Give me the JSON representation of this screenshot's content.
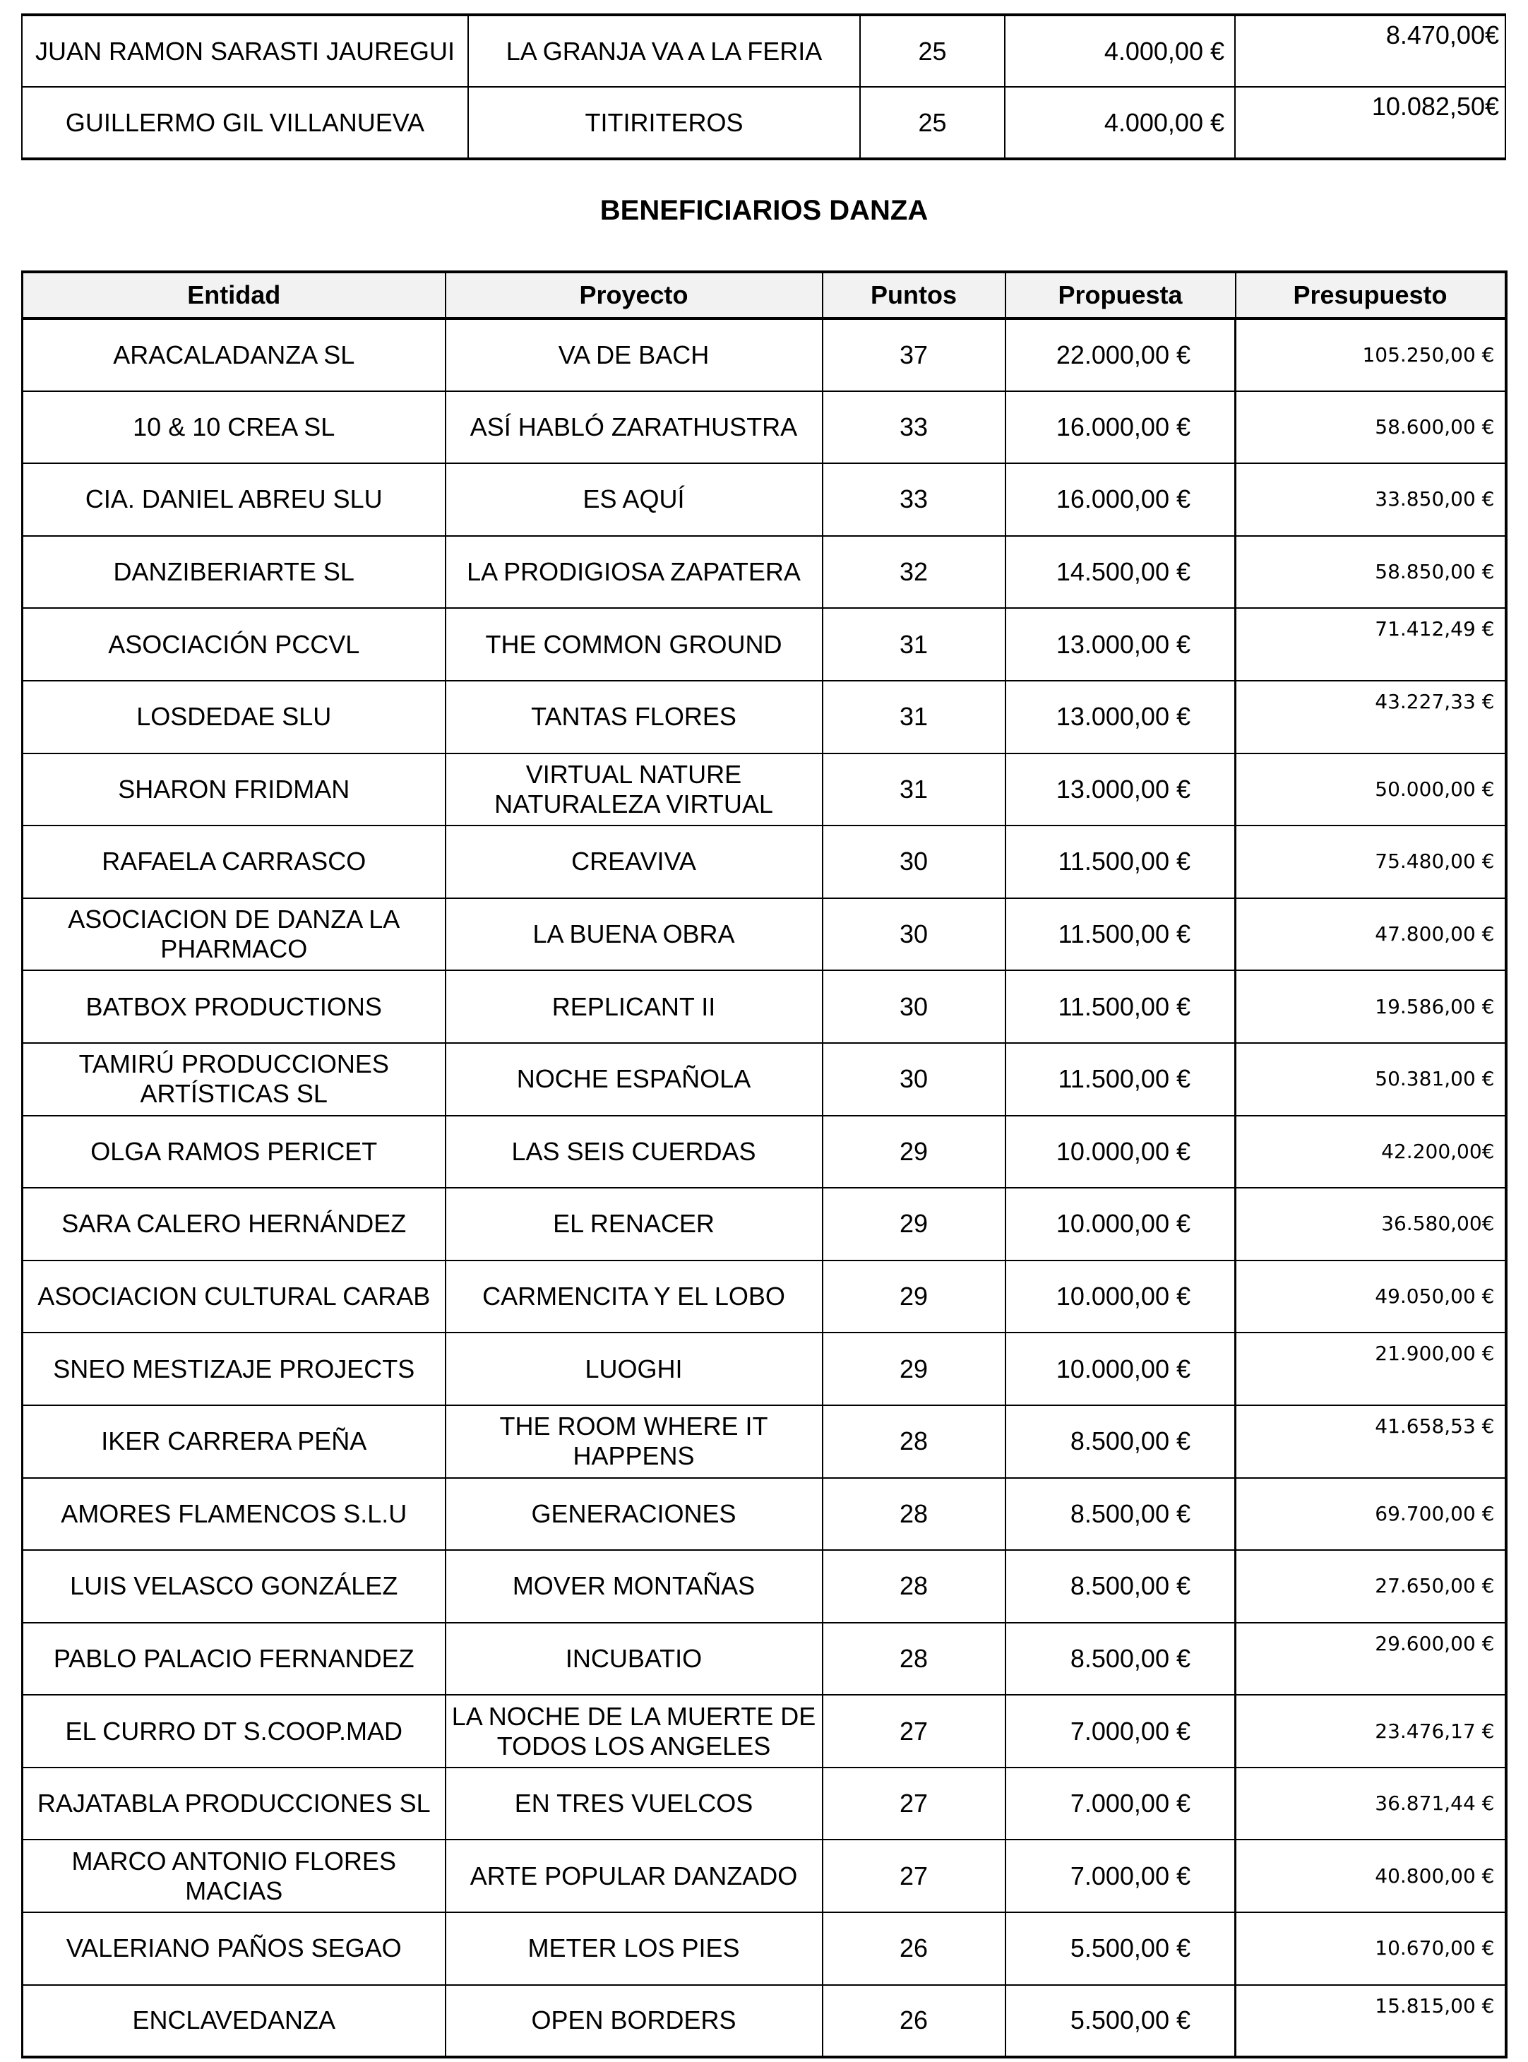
{
  "top_table": {
    "rows": [
      {
        "entidad": "JUAN RAMON SARASTI JAUREGUI",
        "proyecto": "LA GRANJA VA A LA FERIA",
        "puntos": "25",
        "propuesta": "4.000,00 €",
        "presupuesto": "8.470,00€"
      },
      {
        "entidad": "GUILLERMO GIL VILLANUEVA",
        "proyecto": "TITIRITEROS",
        "puntos": "25",
        "propuesta": "4.000,00 €",
        "presupuesto": "10.082,50€"
      }
    ]
  },
  "section_title": "BENEFICIARIOS DANZA",
  "danza_table": {
    "headers": {
      "entidad": "Entidad",
      "proyecto": "Proyecto",
      "puntos": "Puntos",
      "propuesta": "Propuesta",
      "presupuesto": "Presupuesto"
    },
    "rows": [
      {
        "entidad": "ARACALADANZA SL",
        "proyecto": "VA DE BACH",
        "puntos": "37",
        "propuesta": "22.000,00 €",
        "presupuesto": "105.250,00 €"
      },
      {
        "entidad": "10 & 10 CREA SL",
        "proyecto": "ASÍ HABLÓ ZARATHUSTRA",
        "puntos": "33",
        "propuesta": "16.000,00 €",
        "presupuesto": "58.600,00 €"
      },
      {
        "entidad": "CIA. DANIEL ABREU SLU",
        "proyecto": "ES AQUÍ",
        "puntos": "33",
        "propuesta": "16.000,00 €",
        "presupuesto": "33.850,00 €"
      },
      {
        "entidad": "DANZIBERIARTE SL",
        "proyecto": "LA PRODIGIOSA ZAPATERA",
        "puntos": "32",
        "propuesta": "14.500,00 €",
        "presupuesto": "58.850,00 €"
      },
      {
        "entidad": "ASOCIACIÓN PCCVL",
        "proyecto": "THE COMMON GROUND",
        "puntos": "31",
        "propuesta": "13.000,00 €",
        "presupuesto": "71.412,49 €"
      },
      {
        "entidad": "LOSDEDAE SLU",
        "proyecto": "TANTAS FLORES",
        "puntos": "31",
        "propuesta": "13.000,00 €",
        "presupuesto": "43.227,33 €"
      },
      {
        "entidad": "SHARON FRIDMAN",
        "proyecto": "VIRTUAL NATURE NATURALEZA VIRTUAL",
        "puntos": "31",
        "propuesta": "13.000,00 €",
        "presupuesto": "50.000,00 €"
      },
      {
        "entidad": "RAFAELA CARRASCO",
        "proyecto": "CREAVIVA",
        "puntos": "30",
        "propuesta": "11.500,00 €",
        "presupuesto": "75.480,00 €"
      },
      {
        "entidad": "ASOCIACION DE DANZA LA PHARMACO",
        "proyecto": "LA BUENA OBRA",
        "puntos": "30",
        "propuesta": "11.500,00 €",
        "presupuesto": "47.800,00 €"
      },
      {
        "entidad": "BATBOX PRODUCTIONS",
        "proyecto": "REPLICANT II",
        "puntos": "30",
        "propuesta": "11.500,00 €",
        "presupuesto": "19.586,00 €"
      },
      {
        "entidad": "TAMIRÚ PRODUCCIONES ARTÍSTICAS SL",
        "proyecto": "NOCHE ESPAÑOLA",
        "puntos": "30",
        "propuesta": "11.500,00 €",
        "presupuesto": "50.381,00 €"
      },
      {
        "entidad": "OLGA RAMOS PERICET",
        "proyecto": "LAS SEIS CUERDAS",
        "puntos": "29",
        "propuesta": "10.000,00 €",
        "presupuesto": "42.200,00€"
      },
      {
        "entidad": "SARA CALERO HERNÁNDEZ",
        "proyecto": "EL RENACER",
        "puntos": "29",
        "propuesta": "10.000,00 €",
        "presupuesto": "36.580,00€"
      },
      {
        "entidad": "ASOCIACION CULTURAL CARAB",
        "proyecto": "CARMENCITA Y EL LOBO",
        "puntos": "29",
        "propuesta": "10.000,00 €",
        "presupuesto": "49.050,00 €"
      },
      {
        "entidad": "SNEO MESTIZAJE PROJECTS",
        "proyecto": "LUOGHI",
        "puntos": "29",
        "propuesta": "10.000,00 €",
        "presupuesto": "21.900,00 €"
      },
      {
        "entidad": "IKER CARRERA PEÑA",
        "proyecto": "THE ROOM WHERE IT HAPPENS",
        "puntos": "28",
        "propuesta": "8.500,00 €",
        "presupuesto": "41.658,53 €"
      },
      {
        "entidad": "AMORES FLAMENCOS S.L.U",
        "proyecto": "GENERACIONES",
        "puntos": "28",
        "propuesta": "8.500,00 €",
        "presupuesto": "69.700,00 €"
      },
      {
        "entidad": "LUIS VELASCO GONZÁLEZ",
        "proyecto": "MOVER MONTAÑAS",
        "puntos": "28",
        "propuesta": "8.500,00 €",
        "presupuesto": "27.650,00 €"
      },
      {
        "entidad": "PABLO PALACIO FERNANDEZ",
        "proyecto": "INCUBATIO",
        "puntos": "28",
        "propuesta": "8.500,00 €",
        "presupuesto": "29.600,00 €"
      },
      {
        "entidad": "EL CURRO DT S.COOP.MAD",
        "proyecto": "LA NOCHE DE LA MUERTE DE TODOS LOS ANGELES",
        "puntos": "27",
        "propuesta": "7.000,00 €",
        "presupuesto": "23.476,17 €"
      },
      {
        "entidad": "RAJATABLA PRODUCCIONES SL",
        "proyecto": "EN TRES VUELCOS",
        "puntos": "27",
        "propuesta": "7.000,00 €",
        "presupuesto": "36.871,44 €"
      },
      {
        "entidad": "MARCO ANTONIO FLORES MACIAS",
        "proyecto": "ARTE POPULAR DANZADO",
        "puntos": "27",
        "propuesta": "7.000,00 €",
        "presupuesto": "40.800,00 €"
      },
      {
        "entidad": "VALERIANO PAÑOS SEGAO",
        "proyecto": "METER LOS PIES",
        "puntos": "26",
        "propuesta": "5.500,00 €",
        "presupuesto": "10.670,00 €"
      },
      {
        "entidad": "ENCLAVEDANZA",
        "proyecto": "OPEN BORDERS",
        "puntos": "26",
        "propuesta": "5.500,00 €",
        "presupuesto": "15.815,00 €"
      }
    ]
  }
}
